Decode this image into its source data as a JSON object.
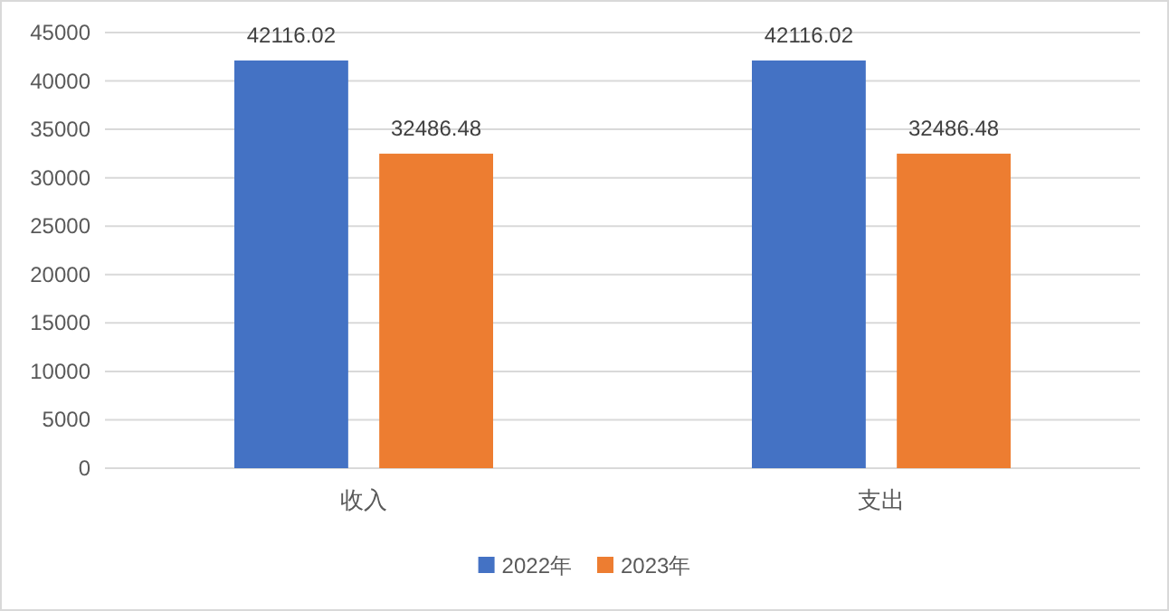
{
  "chart_data": {
    "type": "bar",
    "categories": [
      "收入",
      "支出"
    ],
    "series": [
      {
        "name": "2022年",
        "color": "#4472c4",
        "values": [
          42116.02,
          42116.02
        ]
      },
      {
        "name": "2023年",
        "color": "#ed7d31",
        "values": [
          32486.48,
          32486.48
        ]
      }
    ],
    "ylim": [
      0,
      45000
    ],
    "yticks": [
      0,
      5000,
      10000,
      15000,
      20000,
      25000,
      30000,
      35000,
      40000,
      45000
    ],
    "grid": "y",
    "legend": "bottom",
    "data_labels": true
  }
}
